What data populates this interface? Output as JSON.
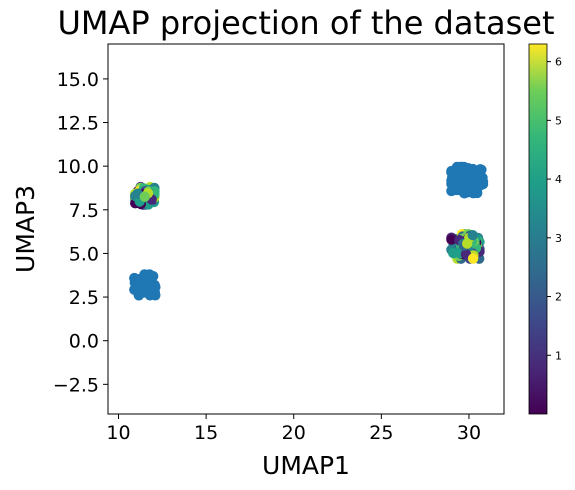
{
  "chart_data": {
    "type": "scatter",
    "title": "UMAP projection of the dataset",
    "xlabel": "UMAP1",
    "ylabel": "UMAP3",
    "xlim": [
      9.4,
      32.0
    ],
    "ylim": [
      -4.2,
      17.0
    ],
    "xticks": [
      10,
      15,
      20,
      25,
      30
    ],
    "yticks": [
      -2.5,
      0.0,
      2.5,
      5.0,
      7.5,
      10.0,
      12.5,
      15.0
    ],
    "xtick_labels": [
      "10",
      "15",
      "20",
      "25",
      "30"
    ],
    "ytick_labels": [
      "−2.5",
      "0.0",
      "2.5",
      "5.0",
      "7.5",
      "10.0",
      "12.5",
      "15.0"
    ],
    "grid": false,
    "colormap": "viridis",
    "colorbar": {
      "range": [
        0.0,
        6.3
      ],
      "ticks": [
        1,
        2,
        3,
        4,
        5,
        6
      ],
      "tick_labels": [
        "1",
        "2",
        "3",
        "4",
        "5",
        "6"
      ]
    },
    "clusters": [
      {
        "kind": "solid",
        "color": "#1f77b4",
        "center": [
          29.9,
          9.2
        ],
        "spread": [
          0.9,
          0.75
        ],
        "count": 140
      },
      {
        "kind": "solid",
        "color": "#1f77b4",
        "center": [
          11.5,
          3.2
        ],
        "spread": [
          0.6,
          0.6
        ],
        "count": 70
      },
      {
        "kind": "colormapped",
        "center": [
          11.5,
          8.3
        ],
        "spread": [
          0.55,
          0.5
        ],
        "count": 90
      },
      {
        "kind": "colormapped",
        "center": [
          29.8,
          5.4
        ],
        "spread": [
          0.8,
          0.7
        ],
        "count": 130
      }
    ]
  }
}
